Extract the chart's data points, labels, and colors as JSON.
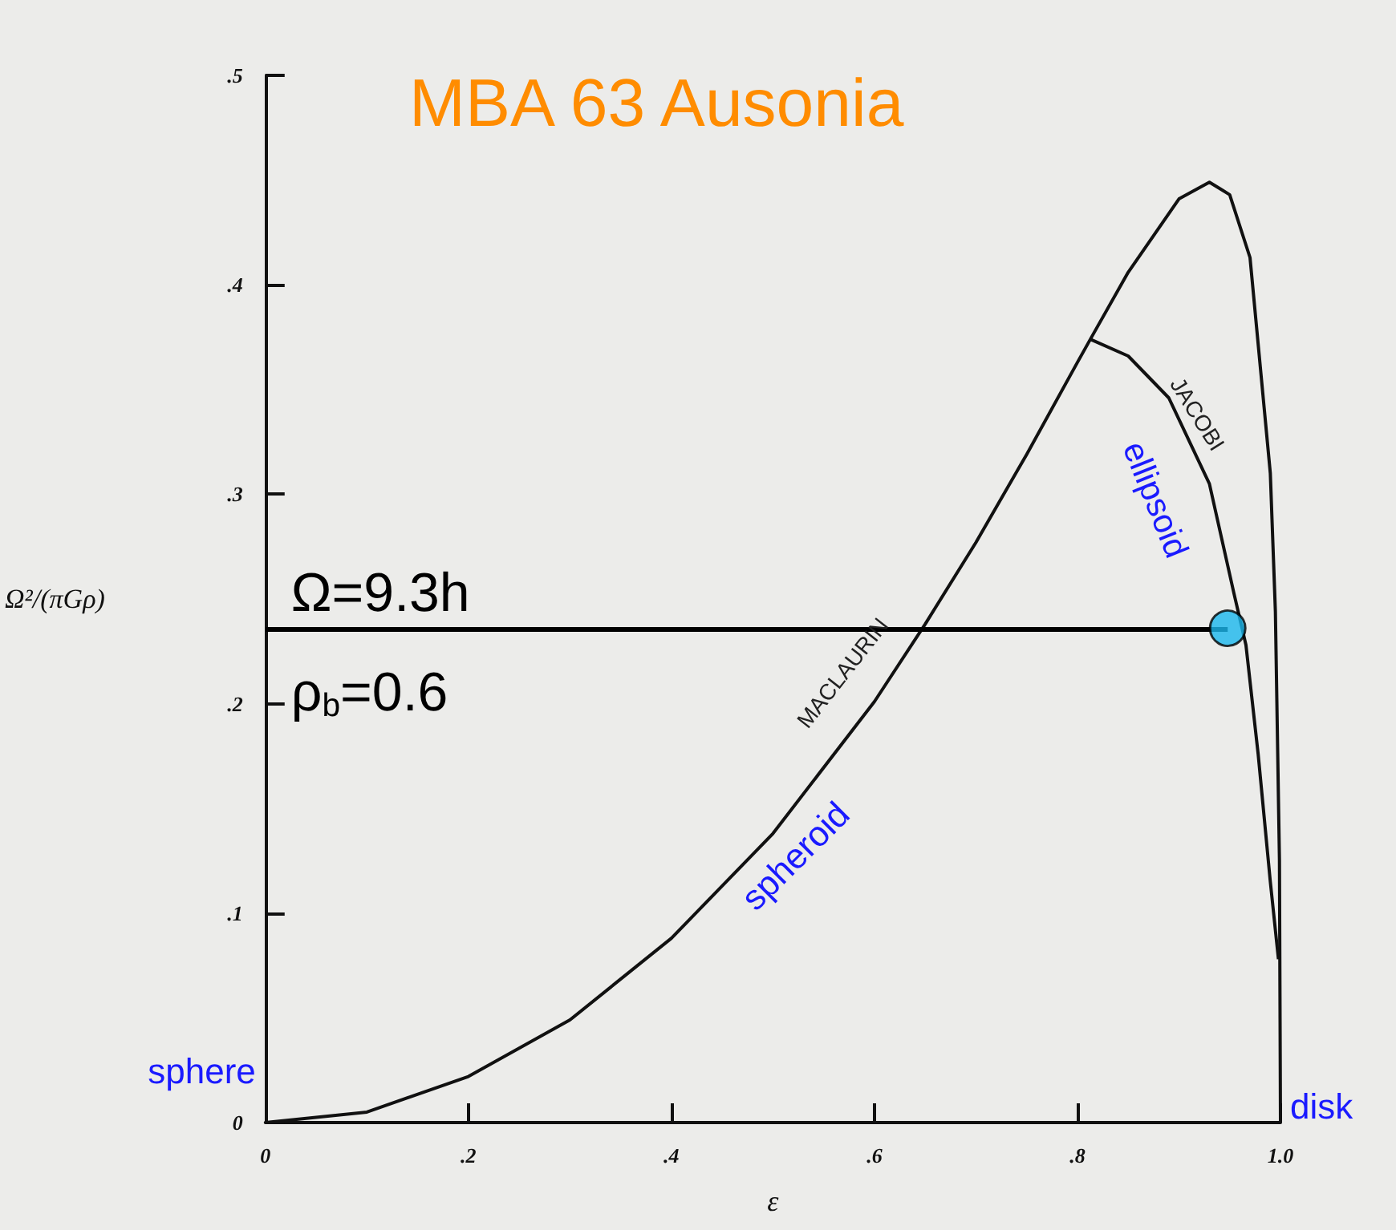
{
  "chart_data": {
    "type": "line",
    "title": "MBA 63 Ausonia",
    "xlabel": "ε",
    "ylabel": "Ω²/(πGρ)",
    "xlim": [
      0,
      1
    ],
    "ylim": [
      0,
      0.5
    ],
    "xticks": [
      0,
      {
        "value": 0.2,
        "label": ".2"
      },
      {
        "value": 0.4,
        "label": ".4"
      },
      {
        "value": 0.6,
        "label": ".6"
      },
      {
        "value": 0.8,
        "label": ".8"
      },
      {
        "value": 1,
        "label": "1.0"
      }
    ],
    "yticks": [
      0,
      {
        "value": 0.1,
        "label": ".1"
      },
      {
        "value": 0.2,
        "label": ".2"
      },
      {
        "value": 0.3,
        "label": ".3"
      },
      {
        "value": 0.4,
        "label": ".4"
      },
      {
        "value": 0.5,
        "label": ".5"
      }
    ],
    "grid": false,
    "marker": "none",
    "line_style": "solid",
    "series": [
      {
        "color": "#111111",
        "x": [
          0,
          0.1,
          0.2,
          0.3,
          0.4,
          0.5,
          0.6,
          0.65,
          0.7,
          0.75,
          0.8,
          0.8127,
          0.85,
          0.9,
          0.93,
          0.95,
          0.97,
          0.99,
          0.995,
          0.999,
          1
        ],
        "values": [
          0,
          0.005,
          0.022,
          0.049,
          0.088,
          0.138,
          0.201,
          0.238,
          0.277,
          0.319,
          0.363,
          0.374,
          0.406,
          0.441,
          0.449,
          0.443,
          0.413,
          0.31,
          0.244,
          0.125,
          0
        ]
      },
      {
        "color": "#111111",
        "x": [
          0.8127,
          0.85,
          0.89,
          0.93,
          0.954,
          0.966,
          0.978,
          0.99,
          0.998
        ],
        "values": [
          0.374,
          0.366,
          0.346,
          0.305,
          0.253,
          0.228,
          0.176,
          0.115,
          0.078
        ]
      },
      {
        "type": "scatter",
        "marker": "circle",
        "color": "#1ab8ee",
        "x": [
          0.948
        ],
        "values": [
          0.236
        ]
      }
    ],
    "ref_lines": [
      {
        "axis": "y",
        "value": 0.236,
        "color": "#000000"
      }
    ],
    "annotations": [
      {
        "text": "MACLAURIN",
        "x": 0.6,
        "y": 0.201
      },
      {
        "text": "JACOBI",
        "x": 0.89,
        "y": 0.346
      },
      {
        "text": "spheroid",
        "x": 0.5,
        "y": 0.138
      },
      {
        "text": "ellipsoid",
        "x": 0.93,
        "y": 0.305
      },
      {
        "text": "sphere",
        "x": 0,
        "y": 0
      },
      {
        "text": "disk",
        "x": 1,
        "y": 0
      },
      "Ω=9.3h",
      "ρ$_{b}$=0.6"
    ]
  }
}
